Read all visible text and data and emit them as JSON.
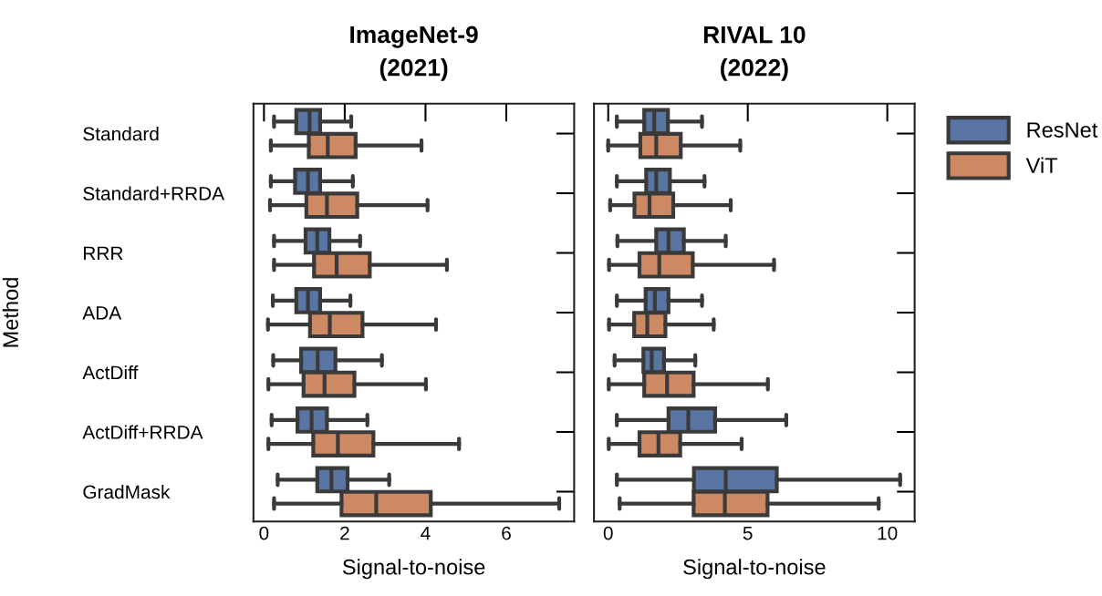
{
  "chart_data": [
    {
      "type": "box",
      "title": "ImageNet-9\n(2021)",
      "xlabel": "Signal-to-noise",
      "ylabel": "Method",
      "orientation": "horizontal",
      "categories": [
        "Standard",
        "Standard+RRDA",
        "RRR",
        "ADA",
        "ActDiff",
        "ActDiff+RRDA",
        "GradMask"
      ],
      "xlim": [
        -0.26,
        7.68
      ],
      "xticks": [
        0,
        2,
        4,
        6
      ],
      "grid": false,
      "legend": "right",
      "series": [
        {
          "name": "ResNet",
          "color": "#5875a4",
          "boxes": [
            {
              "low": 0.25,
              "q1": 0.8,
              "median": 1.13,
              "q3": 1.39,
              "high": 2.16
            },
            {
              "low": 0.17,
              "q1": 0.77,
              "median": 1.09,
              "q3": 1.39,
              "high": 2.2
            },
            {
              "low": 0.25,
              "q1": 1.03,
              "median": 1.32,
              "q3": 1.62,
              "high": 2.38
            },
            {
              "low": 0.22,
              "q1": 0.8,
              "median": 1.09,
              "q3": 1.39,
              "high": 2.14
            },
            {
              "low": 0.23,
              "q1": 0.92,
              "median": 1.33,
              "q3": 1.77,
              "high": 2.92
            },
            {
              "low": 0.19,
              "q1": 0.83,
              "median": 1.18,
              "q3": 1.56,
              "high": 2.56
            },
            {
              "low": 0.34,
              "q1": 1.32,
              "median": 1.67,
              "q3": 2.07,
              "high": 3.1
            }
          ]
        },
        {
          "name": "ViT",
          "color": "#cc8963",
          "boxes": [
            {
              "low": 0.17,
              "q1": 1.11,
              "median": 1.58,
              "q3": 2.27,
              "high": 3.9
            },
            {
              "low": 0.15,
              "q1": 1.05,
              "median": 1.56,
              "q3": 2.31,
              "high": 4.05
            },
            {
              "low": 0.25,
              "q1": 1.24,
              "median": 1.8,
              "q3": 2.62,
              "high": 4.53
            },
            {
              "low": 0.1,
              "q1": 1.14,
              "median": 1.63,
              "q3": 2.44,
              "high": 4.26
            },
            {
              "low": 0.11,
              "q1": 0.98,
              "median": 1.5,
              "q3": 2.24,
              "high": 4.01
            },
            {
              "low": 0.11,
              "q1": 1.22,
              "median": 1.83,
              "q3": 2.71,
              "high": 4.83
            },
            {
              "low": 0.25,
              "q1": 1.92,
              "median": 2.78,
              "q3": 4.13,
              "high": 7.31
            }
          ]
        }
      ]
    },
    {
      "type": "box",
      "title": "RIVAL 10\n(2022)",
      "xlabel": "Signal-to-noise",
      "orientation": "horizontal",
      "categories": [
        null,
        null,
        null,
        null,
        null,
        null,
        null
      ],
      "xlim": [
        -0.51,
        10.98
      ],
      "xticks": [
        0,
        5,
        10
      ],
      "tick_labels": "x",
      "grid": false,
      "series": [
        {
          "color": "#5875a4",
          "boxes": [
            {
              "low": 0.31,
              "q1": 1.29,
              "median": 1.65,
              "q3": 2.14,
              "high": 3.36
            },
            {
              "low": 0.31,
              "q1": 1.36,
              "median": 1.72,
              "q3": 2.21,
              "high": 3.45
            },
            {
              "low": 0.33,
              "q1": 1.72,
              "median": 2.16,
              "q3": 2.71,
              "high": 4.21
            },
            {
              "low": 0.31,
              "q1": 1.34,
              "median": 1.67,
              "q3": 2.16,
              "high": 3.36
            },
            {
              "low": 0.23,
              "q1": 1.26,
              "median": 1.56,
              "q3": 2.0,
              "high": 3.12
            },
            {
              "low": 0.31,
              "q1": 2.16,
              "median": 2.87,
              "q3": 3.83,
              "high": 6.38
            },
            {
              "low": 0.31,
              "q1": 3.07,
              "median": 4.21,
              "q3": 6.04,
              "high": 10.46
            }
          ]
        },
        {
          "color": "#cc8963",
          "boxes": [
            {
              "low": 0.0,
              "q1": 1.15,
              "median": 1.72,
              "q3": 2.6,
              "high": 4.73
            },
            {
              "low": 0.07,
              "q1": 0.94,
              "median": 1.48,
              "q3": 2.33,
              "high": 4.39
            },
            {
              "low": 0.03,
              "q1": 1.12,
              "median": 1.83,
              "q3": 3.03,
              "high": 5.94
            },
            {
              "low": 0.03,
              "q1": 0.93,
              "median": 1.4,
              "q3": 2.05,
              "high": 3.78
            },
            {
              "low": 0.02,
              "q1": 1.29,
              "median": 2.11,
              "q3": 3.06,
              "high": 5.72
            },
            {
              "low": 0.02,
              "q1": 1.12,
              "median": 1.8,
              "q3": 2.58,
              "high": 4.78
            },
            {
              "low": 0.41,
              "q1": 3.06,
              "median": 4.18,
              "q3": 5.71,
              "high": 9.69
            }
          ]
        }
      ]
    }
  ]
}
